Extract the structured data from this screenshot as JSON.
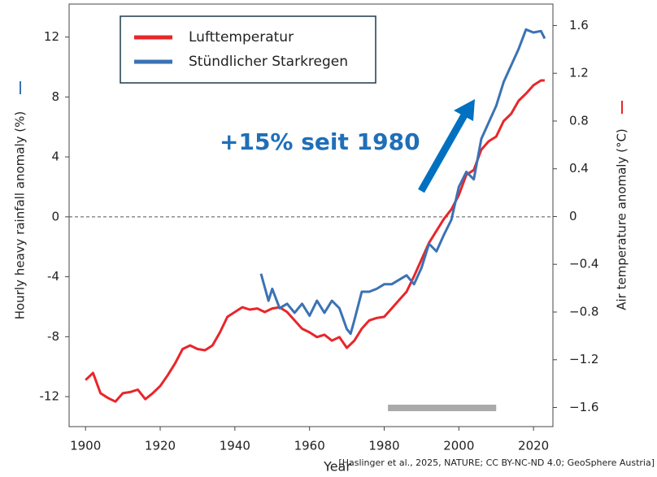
{
  "chart_data": {
    "type": "line",
    "y_label": "Hourly heavy rainfall anomaly (%)",
    "y2_label": "Air temperature anomaly (°C)",
    "x_label": "Year",
    "annotation": "+15% seit 1980",
    "source": "[Haslinger et al., 2025, NATURE; CC BY-NC-ND 4.0; GeoSphere Austria]",
    "xlim": [
      1895.6,
      2025.2
    ],
    "xticks": [
      1900,
      1920,
      1940,
      1960,
      1980,
      2000,
      2020
    ],
    "ylim": [
      -14,
      14.2
    ],
    "yticks": [
      -12,
      -8,
      -4,
      0,
      4,
      8,
      12
    ],
    "y2lim": [
      -1.76,
      1.78
    ],
    "y2ticks": [
      {
        "value": -1.6,
        "label": "−1.6"
      },
      {
        "value": -1.2,
        "label": "−1.2"
      },
      {
        "value": -0.8,
        "label": "−0.8"
      },
      {
        "value": -0.4,
        "label": "−0.4"
      },
      0,
      0.4,
      0.8,
      1.2,
      1.6
    ],
    "reference_period": [
      1981,
      2010
    ],
    "series": [
      {
        "name": "Lufttemperatur",
        "color": "#e8262a",
        "axis": "y2",
        "x": [
          1900,
          1902,
          1904,
          1906,
          1908,
          1910,
          1912,
          1914,
          1916,
          1918,
          1920,
          1922,
          1924,
          1926,
          1928,
          1930,
          1932,
          1934,
          1936,
          1938,
          1940,
          1942,
          1944,
          1946,
          1948,
          1950,
          1952,
          1954,
          1956,
          1958,
          1960,
          1962,
          1964,
          1966,
          1968,
          1970,
          1972,
          1974,
          1976,
          1978,
          1980,
          1982,
          1984,
          1986,
          1988,
          1990,
          1992,
          1994,
          1996,
          1998,
          2000,
          2002,
          2004,
          2006,
          2008,
          2010,
          2012,
          2014,
          2016,
          2018,
          2020,
          2022,
          2023
        ],
        "values": [
          -1.37,
          -1.31,
          -1.48,
          -1.52,
          -1.55,
          -1.48,
          -1.47,
          -1.45,
          -1.53,
          -1.48,
          -1.42,
          -1.33,
          -1.23,
          -1.11,
          -1.08,
          -1.11,
          -1.12,
          -1.08,
          -0.97,
          -0.84,
          -0.8,
          -0.76,
          -0.78,
          -0.77,
          -0.8,
          -0.77,
          -0.76,
          -0.8,
          -0.87,
          -0.94,
          -0.97,
          -1.01,
          -0.99,
          -1.04,
          -1.01,
          -1.1,
          -1.04,
          -0.94,
          -0.87,
          -0.85,
          -0.84,
          -0.77,
          -0.7,
          -0.63,
          -0.5,
          -0.36,
          -0.22,
          -0.12,
          -0.02,
          0.06,
          0.18,
          0.35,
          0.39,
          0.56,
          0.63,
          0.67,
          0.8,
          0.86,
          0.97,
          1.03,
          1.1,
          1.14,
          1.14
        ]
      },
      {
        "name": "Stündlicher Starkregen",
        "color": "#3b72b5",
        "axis": "y",
        "x": [
          1947,
          1949,
          1950,
          1952,
          1954,
          1956,
          1958,
          1960,
          1962,
          1964,
          1966,
          1968,
          1970,
          1971,
          1972,
          1974,
          1976,
          1978,
          1980,
          1982,
          1984,
          1986,
          1988,
          1990,
          1992,
          1994,
          1996,
          1998,
          2000,
          2002,
          2004,
          2006,
          2008,
          2010,
          2012,
          2014,
          2016,
          2018,
          2020,
          2022,
          2023
        ],
        "values": [
          -3.8,
          -5.6,
          -4.8,
          -6.1,
          -5.8,
          -6.4,
          -5.8,
          -6.6,
          -5.6,
          -6.4,
          -5.6,
          -6.1,
          -7.5,
          -7.8,
          -6.9,
          -5.0,
          -5.0,
          -4.8,
          -4.5,
          -4.5,
          -4.2,
          -3.9,
          -4.5,
          -3.4,
          -1.8,
          -2.3,
          -1.2,
          -0.2,
          2.0,
          3.0,
          2.5,
          5.2,
          6.3,
          7.4,
          9.0,
          10.1,
          11.2,
          12.5,
          12.3,
          12.4,
          11.9
        ]
      }
    ]
  }
}
